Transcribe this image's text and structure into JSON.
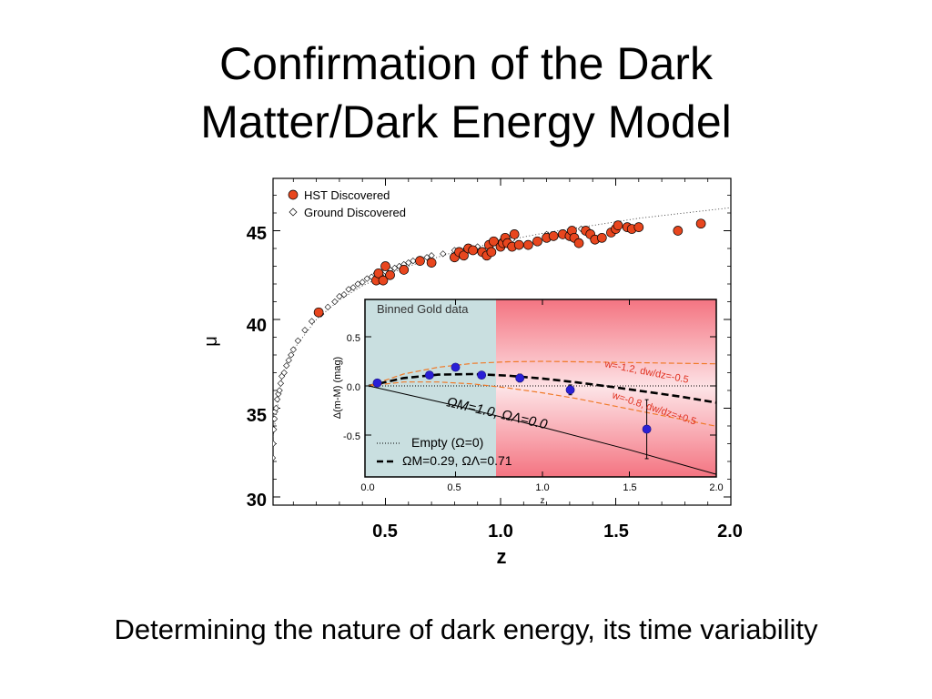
{
  "slide": {
    "title_line1": "Confirmation of the Dark",
    "title_line2": "Matter/Dark Energy Model",
    "caption": "Determining the nature of dark energy, its time variability"
  },
  "colors": {
    "hst": "#e8461e",
    "binned": "#2a1fd6",
    "inset_left_bg": "#c9dfe0",
    "inset_right_bg": "#f07080"
  },
  "chart_data": [
    {
      "type": "scatter",
      "title": "",
      "xlabel": "z",
      "ylabel": "μ",
      "xlim": [
        0.0,
        2.0
      ],
      "ylim": [
        30,
        47.5
      ],
      "x_ticks": [
        "0.5",
        "1.0",
        "1.5",
        "2.0"
      ],
      "y_ticks": [
        "30",
        "35",
        "40",
        "45"
      ],
      "legend": [
        "HST Discovered",
        "Ground Discovered"
      ],
      "legend_position": "top-left",
      "grid": false,
      "series": [
        {
          "name": "HST Discovered",
          "marker": "filled-circle",
          "points": [
            [
              0.21,
              40.4
            ],
            [
              0.46,
              42.2
            ],
            [
              0.47,
              42.6
            ],
            [
              0.49,
              42.2
            ],
            [
              0.5,
              43.0
            ],
            [
              0.52,
              42.5
            ],
            [
              0.58,
              42.8
            ],
            [
              0.65,
              43.3
            ],
            [
              0.7,
              43.2
            ],
            [
              0.8,
              43.5
            ],
            [
              0.82,
              43.8
            ],
            [
              0.84,
              43.6
            ],
            [
              0.86,
              44.0
            ],
            [
              0.88,
              43.9
            ],
            [
              0.92,
              43.8
            ],
            [
              0.94,
              43.6
            ],
            [
              0.95,
              44.2
            ],
            [
              0.96,
              43.8
            ],
            [
              0.97,
              44.4
            ],
            [
              1.0,
              44.1
            ],
            [
              1.01,
              44.3
            ],
            [
              1.02,
              44.6
            ],
            [
              1.03,
              44.3
            ],
            [
              1.05,
              44.1
            ],
            [
              1.06,
              44.8
            ],
            [
              1.08,
              44.2
            ],
            [
              1.12,
              44.2
            ],
            [
              1.16,
              44.4
            ],
            [
              1.2,
              44.6
            ],
            [
              1.23,
              44.7
            ],
            [
              1.27,
              44.8
            ],
            [
              1.3,
              44.7
            ],
            [
              1.31,
              45.0
            ],
            [
              1.32,
              44.6
            ],
            [
              1.34,
              44.3
            ],
            [
              1.37,
              45.0
            ],
            [
              1.39,
              44.8
            ],
            [
              1.41,
              44.5
            ],
            [
              1.44,
              44.6
            ],
            [
              1.48,
              44.9
            ],
            [
              1.5,
              45.1
            ],
            [
              1.51,
              45.3
            ],
            [
              1.55,
              45.2
            ],
            [
              1.57,
              45.1
            ],
            [
              1.6,
              45.2
            ],
            [
              1.77,
              45.0
            ],
            [
              1.87,
              45.4
            ]
          ]
        },
        {
          "name": "Ground Discovered",
          "marker": "open-diamond",
          "points": [
            [
              0.01,
              32.2
            ],
            [
              0.012,
              33.0
            ],
            [
              0.015,
              33.8
            ],
            [
              0.018,
              34.4
            ],
            [
              0.02,
              34.8
            ],
            [
              0.025,
              35.0
            ],
            [
              0.03,
              35.5
            ],
            [
              0.035,
              35.8
            ],
            [
              0.04,
              36.0
            ],
            [
              0.045,
              36.4
            ],
            [
              0.05,
              36.8
            ],
            [
              0.06,
              37.0
            ],
            [
              0.07,
              37.4
            ],
            [
              0.08,
              37.7
            ],
            [
              0.09,
              38.0
            ],
            [
              0.1,
              38.3
            ],
            [
              0.12,
              38.8
            ],
            [
              0.15,
              39.4
            ],
            [
              0.18,
              39.9
            ],
            [
              0.22,
              40.3
            ],
            [
              0.25,
              40.7
            ],
            [
              0.28,
              41.0
            ],
            [
              0.3,
              41.3
            ],
            [
              0.32,
              41.4
            ],
            [
              0.34,
              41.7
            ],
            [
              0.36,
              41.8
            ],
            [
              0.38,
              42.0
            ],
            [
              0.4,
              42.1
            ],
            [
              0.42,
              42.3
            ],
            [
              0.44,
              42.4
            ],
            [
              0.46,
              42.6
            ],
            [
              0.48,
              42.5
            ],
            [
              0.5,
              42.7
            ],
            [
              0.52,
              42.8
            ],
            [
              0.54,
              42.9
            ],
            [
              0.56,
              43.0
            ],
            [
              0.58,
              43.1
            ],
            [
              0.6,
              43.2
            ],
            [
              0.62,
              43.3
            ],
            [
              0.65,
              43.4
            ],
            [
              0.68,
              43.5
            ],
            [
              0.7,
              43.6
            ],
            [
              0.75,
              43.7
            ],
            [
              0.8,
              43.9
            ],
            [
              0.85,
              44.0
            ],
            [
              0.9,
              44.1
            ],
            [
              0.95,
              44.3
            ],
            [
              1.0,
              44.4
            ],
            [
              1.05,
              44.5
            ],
            [
              1.2,
              44.8
            ],
            [
              1.35,
              45.1
            ]
          ]
        }
      ],
      "reference_curve": {
        "style": "dotted",
        "points": [
          [
            0.01,
            33.2
          ],
          [
            0.05,
            36.7
          ],
          [
            0.1,
            38.3
          ],
          [
            0.2,
            40.0
          ],
          [
            0.3,
            41.1
          ],
          [
            0.4,
            41.9
          ],
          [
            0.5,
            42.5
          ],
          [
            0.6,
            43.0
          ],
          [
            0.7,
            43.4
          ],
          [
            0.8,
            43.8
          ],
          [
            0.9,
            44.1
          ],
          [
            1.0,
            44.4
          ],
          [
            1.2,
            44.9
          ],
          [
            1.4,
            45.3
          ],
          [
            1.6,
            45.7
          ],
          [
            1.8,
            46.0
          ],
          [
            2.0,
            46.3
          ]
        ]
      }
    },
    {
      "type": "line",
      "title": "Binned Gold data",
      "xlabel": "z",
      "ylabel": "Δ(m-M) (mag)",
      "xlim": [
        0.0,
        2.0
      ],
      "ylim": [
        -0.9,
        0.9
      ],
      "x_ticks": [
        "0.0",
        "0.5",
        "1.0",
        "1.5",
        "2.0"
      ],
      "y_ticks": [
        "0.5",
        "0.0",
        "-0.5"
      ],
      "shaded_regions": [
        {
          "from": 0.0,
          "to": 0.75,
          "style": "blue-grey"
        },
        {
          "from": 0.75,
          "to": 2.0,
          "style": "red-gradient"
        }
      ],
      "series": [
        {
          "name": "Binned Gold data",
          "marker": "filled-circle",
          "points": [
            [
              0.05,
              0.03,
              0.02
            ],
            [
              0.35,
              0.11,
              0.03
            ],
            [
              0.5,
              0.19,
              0.03
            ],
            [
              0.65,
              0.11,
              0.03
            ],
            [
              0.87,
              0.08,
              0.04
            ],
            [
              1.16,
              -0.04,
              0.05
            ],
            [
              1.6,
              -0.44,
              0.3
            ]
          ]
        },
        {
          "name": "ΩM=0.29, ΩΛ=0.71",
          "style": "thick-dashed",
          "points": [
            [
              0,
              0
            ],
            [
              0.2,
              0.08
            ],
            [
              0.4,
              0.115
            ],
            [
              0.6,
              0.12
            ],
            [
              0.8,
              0.105
            ],
            [
              1.0,
              0.075
            ],
            [
              1.2,
              0.035
            ],
            [
              1.4,
              -0.01
            ],
            [
              1.6,
              -0.06
            ],
            [
              1.8,
              -0.11
            ],
            [
              2.0,
              -0.17
            ]
          ]
        },
        {
          "name": "ΩM=1.0, ΩΛ=0.0",
          "style": "solid",
          "points": [
            [
              0,
              0
            ],
            [
              0.5,
              -0.2
            ],
            [
              1.0,
              -0.42
            ],
            [
              1.5,
              -0.65
            ],
            [
              1.8,
              -0.8
            ],
            [
              2.0,
              -0.9
            ]
          ]
        },
        {
          "name": "Empty (Ω=0)",
          "style": "dotted",
          "points": [
            [
              0,
              0
            ],
            [
              2.0,
              0
            ]
          ]
        },
        {
          "name": "w=-1.2, dw/dz=-0.5",
          "style": "orange-dashed",
          "points": [
            [
              0,
              0
            ],
            [
              0.2,
              0.12
            ],
            [
              0.4,
              0.19
            ],
            [
              0.6,
              0.23
            ],
            [
              0.8,
              0.245
            ],
            [
              1.0,
              0.25
            ],
            [
              1.2,
              0.245
            ],
            [
              1.4,
              0.24
            ],
            [
              1.6,
              0.235
            ],
            [
              1.8,
              0.23
            ],
            [
              2.0,
              0.225
            ]
          ]
        },
        {
          "name": "w=-0.8, dw/dz=+0.5",
          "style": "orange-dashed",
          "points": [
            [
              0,
              0
            ],
            [
              0.2,
              0.04
            ],
            [
              0.4,
              0.04
            ],
            [
              0.6,
              0.02
            ],
            [
              0.8,
              -0.02
            ],
            [
              1.0,
              -0.07
            ],
            [
              1.2,
              -0.13
            ],
            [
              1.4,
              -0.2
            ],
            [
              1.6,
              -0.27
            ],
            [
              1.8,
              -0.34
            ],
            [
              2.0,
              -0.41
            ]
          ]
        }
      ],
      "annotations": [
        "ΩM=1.0, ΩΛ=0.0",
        "w=-1.2, dw/dz=-0.5",
        "w=-0.8, dw/dz=+0.5"
      ],
      "legend": [
        "Empty (Ω=0)",
        "ΩM=0.29, ΩΛ=0.71"
      ],
      "legend_position": "bottom-left"
    }
  ]
}
